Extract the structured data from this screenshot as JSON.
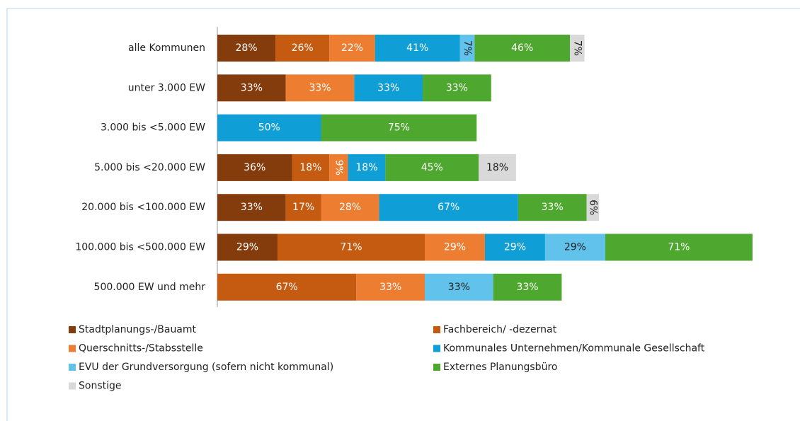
{
  "chart_data": {
    "type": "stacked-barh",
    "categories": [
      "alle Kommunen",
      "unter 3.000 EW",
      "3.000 bis <5.000 EW",
      "5.000 bis <20.000 EW",
      "20.000 bis <100.000 EW",
      "100.000 bis <500.000 EW",
      "500.000 EW und mehr"
    ],
    "series": [
      {
        "name": "Stadtplanungs-/Bauamt",
        "color": "#843c0c",
        "values": [
          28,
          33,
          null,
          36,
          33,
          29,
          null
        ],
        "value_labels": [
          "28%",
          "33%",
          null,
          "36%",
          "33%",
          "29%",
          null
        ]
      },
      {
        "name": "Fachbereich/ -dezernat",
        "color": "#c55a11",
        "values": [
          26,
          null,
          null,
          18,
          17,
          71,
          67
        ],
        "value_labels": [
          "26%",
          null,
          null,
          "18%",
          "17%",
          "71%",
          "67%"
        ]
      },
      {
        "name": "Querschnitts-/Stabsstelle",
        "color": "#ed7d31",
        "values": [
          22,
          33,
          null,
          9,
          28,
          29,
          33
        ],
        "value_labels": [
          "22%",
          "33%",
          null,
          "9%",
          "28%",
          "29%",
          "33%"
        ]
      },
      {
        "name": "Kommunales Unternehmen/Kommunale Gesellschaft",
        "color": "#0f9ed5",
        "values": [
          41,
          33,
          50,
          18,
          67,
          29,
          null
        ],
        "value_labels": [
          "41%",
          "33%",
          "50%",
          "18%",
          "67%",
          "29%",
          null
        ]
      },
      {
        "name": "EVU der Grundversorgung (sofern nicht kommunal)",
        "color": "#61c3ec",
        "values": [
          7,
          null,
          null,
          null,
          null,
          29,
          33
        ],
        "value_labels": [
          "7%",
          null,
          null,
          null,
          null,
          "29%",
          "33%"
        ]
      },
      {
        "name": "Externes Planungsbüro",
        "color": "#4ea72e",
        "values": [
          46,
          33,
          75,
          45,
          33,
          71,
          33
        ],
        "value_labels": [
          "46%",
          "33%",
          "75%",
          "45%",
          "33%",
          "71%",
          "33%"
        ]
      },
      {
        "name": "Sonstige",
        "color": "#d9d9d9",
        "values": [
          7,
          null,
          null,
          18,
          6,
          null,
          null
        ],
        "value_labels": [
          "7%",
          null,
          null,
          "18%",
          "6%",
          null,
          null
        ]
      }
    ]
  }
}
